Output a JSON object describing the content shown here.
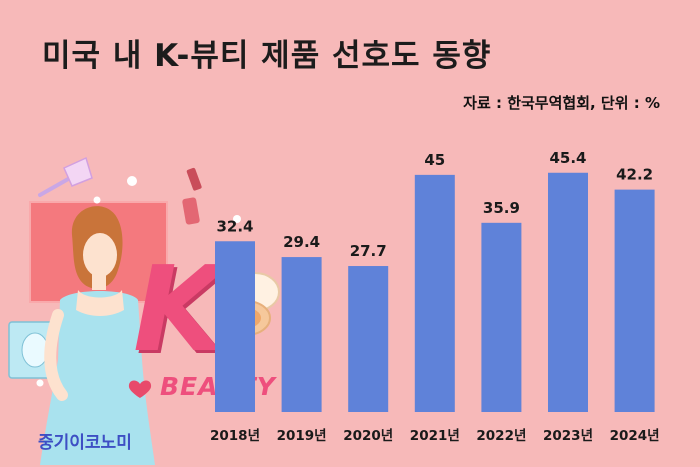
{
  "title": "미국 내 K-뷰티 제품 선호도 동향",
  "source": "자료 : 한국무역협회, 단위 : %",
  "brand": "중기이코노미",
  "illustration": {
    "letter": "K",
    "word": "BEAUTY"
  },
  "colors": {
    "background": "#f7b9b9",
    "bar": "#5f82d9",
    "brand": "#3d4fc4",
    "accent": "#ee4f7d"
  },
  "chart_data": {
    "type": "bar",
    "title": "미국 내 K-뷰티 제품 선호도 동향",
    "xlabel": "",
    "ylabel": "",
    "unit": "%",
    "categories": [
      "2018년",
      "2019년",
      "2020년",
      "2021년",
      "2022년",
      "2023년",
      "2024년"
    ],
    "values": [
      32.4,
      29.4,
      27.7,
      45,
      35.9,
      45.4,
      42.2
    ],
    "value_labels": [
      "32.4",
      "29.4",
      "27.7",
      "45",
      "35.9",
      "45.4",
      "42.2"
    ],
    "ylim": [
      0,
      48.2
    ],
    "grid": false,
    "legend": "none"
  }
}
